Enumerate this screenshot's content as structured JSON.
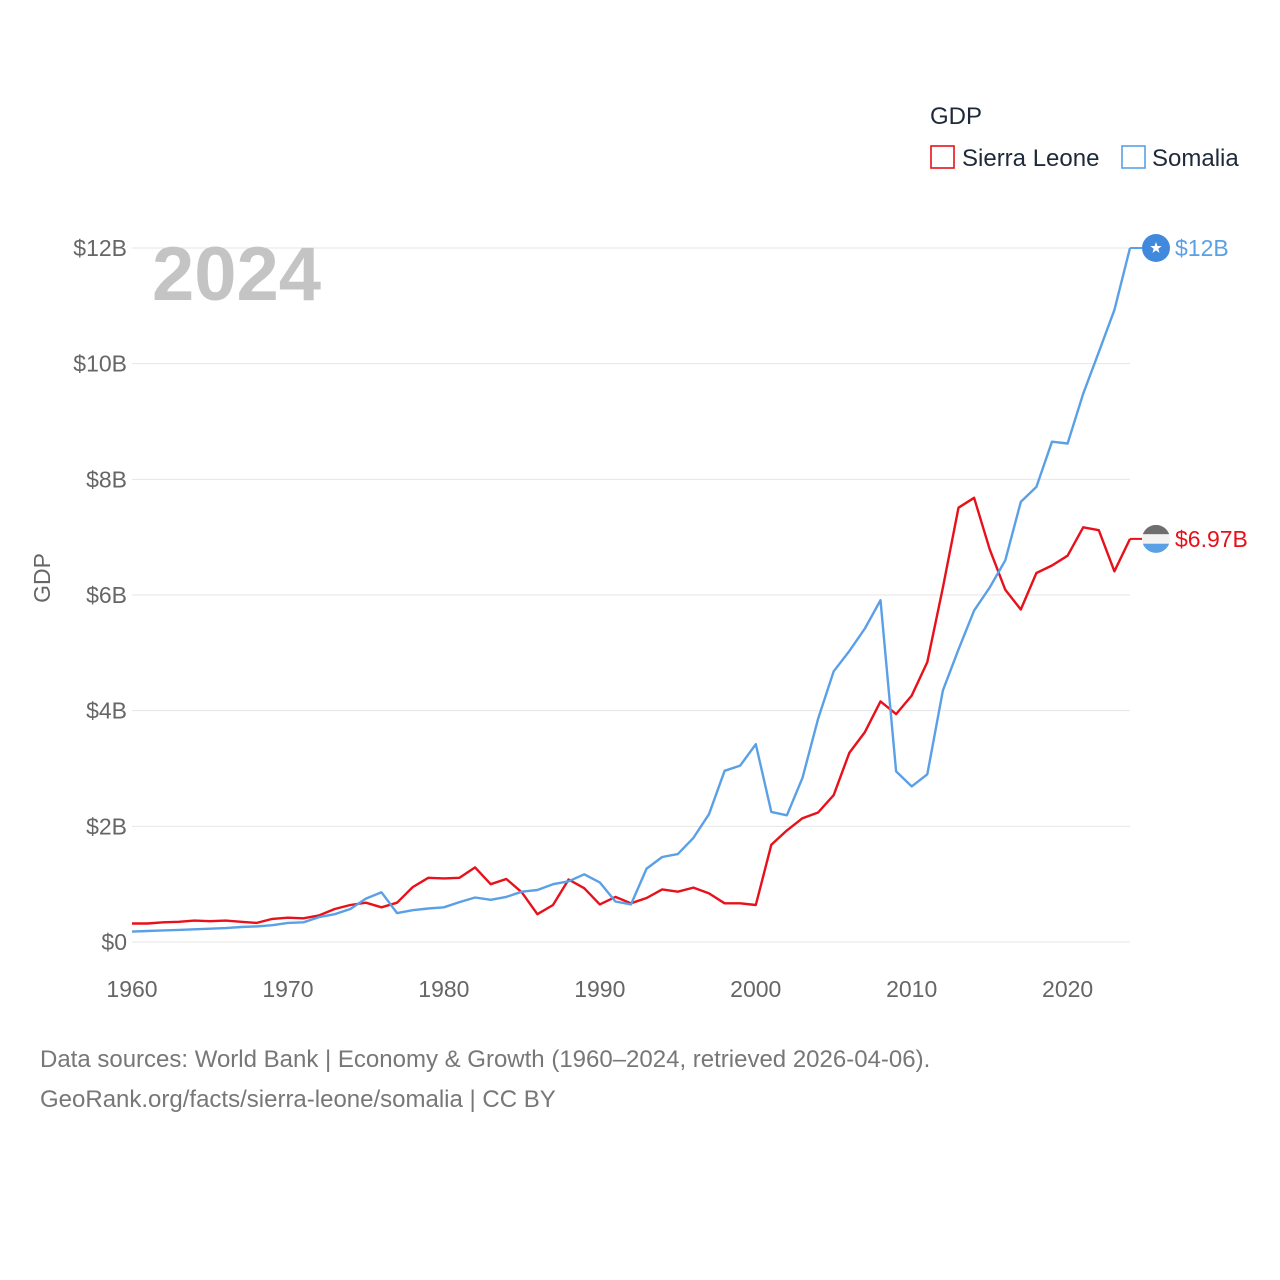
{
  "colors": {
    "sierra_leone": "#e8101a",
    "somalia": "#5aa0e6",
    "grid": "#e6e6e6",
    "tick": "#666666",
    "watermark": "#c4c4c4"
  },
  "icons": {
    "sierra_leone": "sierra-leone-flag-icon",
    "somalia": "somalia-flag-icon"
  },
  "chart_data": {
    "type": "line",
    "title": "GDP",
    "year_display": "2024",
    "xlabel": "",
    "ylabel": "GDP",
    "xlim": [
      1960,
      2024
    ],
    "ylim": [
      0,
      12000000000
    ],
    "x_ticks": [
      1960,
      1970,
      1980,
      1990,
      2000,
      2010,
      2020
    ],
    "y_ticks": [
      {
        "value": 0,
        "label": "$0"
      },
      {
        "value": 2000000000,
        "label": "$2B"
      },
      {
        "value": 4000000000,
        "label": "$4B"
      },
      {
        "value": 6000000000,
        "label": "$6B"
      },
      {
        "value": 8000000000,
        "label": "$8B"
      },
      {
        "value": 10000000000,
        "label": "$10B"
      },
      {
        "value": 12000000000,
        "label": "$12B"
      }
    ],
    "grid": true,
    "legend": {
      "title": "GDP",
      "position": "top-right"
    },
    "start_year": 1960,
    "series": [
      {
        "key": "sierra_leone",
        "name": "Sierra Leone",
        "end_label": "$6.97B",
        "values_billions": [
          0.32,
          0.32,
          0.34,
          0.35,
          0.37,
          0.36,
          0.37,
          0.35,
          0.33,
          0.4,
          0.42,
          0.41,
          0.46,
          0.57,
          0.64,
          0.68,
          0.6,
          0.68,
          0.95,
          1.11,
          1.1,
          1.11,
          1.29,
          1.0,
          1.09,
          0.86,
          0.48,
          0.64,
          1.08,
          0.93,
          0.65,
          0.78,
          0.67,
          0.76,
          0.91,
          0.87,
          0.94,
          0.84,
          0.67,
          0.67,
          0.64,
          1.68,
          1.93,
          2.14,
          2.24,
          2.54,
          3.27,
          3.63,
          4.16,
          3.94,
          4.26,
          4.84,
          6.13,
          7.51,
          7.68,
          6.79,
          6.09,
          5.75,
          6.38,
          6.51,
          6.68,
          7.17,
          7.12,
          6.41,
          6.97
        ]
      },
      {
        "key": "somalia",
        "name": "Somalia",
        "end_label": "$12B",
        "values_billions": [
          0.18,
          0.19,
          0.2,
          0.21,
          0.22,
          0.23,
          0.24,
          0.26,
          0.27,
          0.29,
          0.33,
          0.34,
          0.43,
          0.48,
          0.57,
          0.75,
          0.86,
          0.5,
          0.55,
          0.58,
          0.6,
          0.69,
          0.77,
          0.73,
          0.78,
          0.87,
          0.9,
          1.0,
          1.05,
          1.17,
          1.03,
          0.7,
          0.65,
          1.27,
          1.47,
          1.52,
          1.8,
          2.21,
          2.96,
          3.05,
          3.42,
          2.25,
          2.19,
          2.84,
          3.86,
          4.68,
          5.03,
          5.42,
          5.91,
          2.95,
          2.69,
          2.9,
          4.35,
          5.06,
          5.73,
          6.13,
          6.6,
          7.61,
          7.87,
          8.65,
          8.62,
          9.48,
          10.2,
          10.93,
          12.0
        ]
      }
    ]
  },
  "source": {
    "line1": "Data sources: World Bank | Economy & Growth (1960–2024, retrieved 2026-04-06).",
    "line2": "GeoRank.org/facts/sierra-leone/somalia | CC BY"
  }
}
